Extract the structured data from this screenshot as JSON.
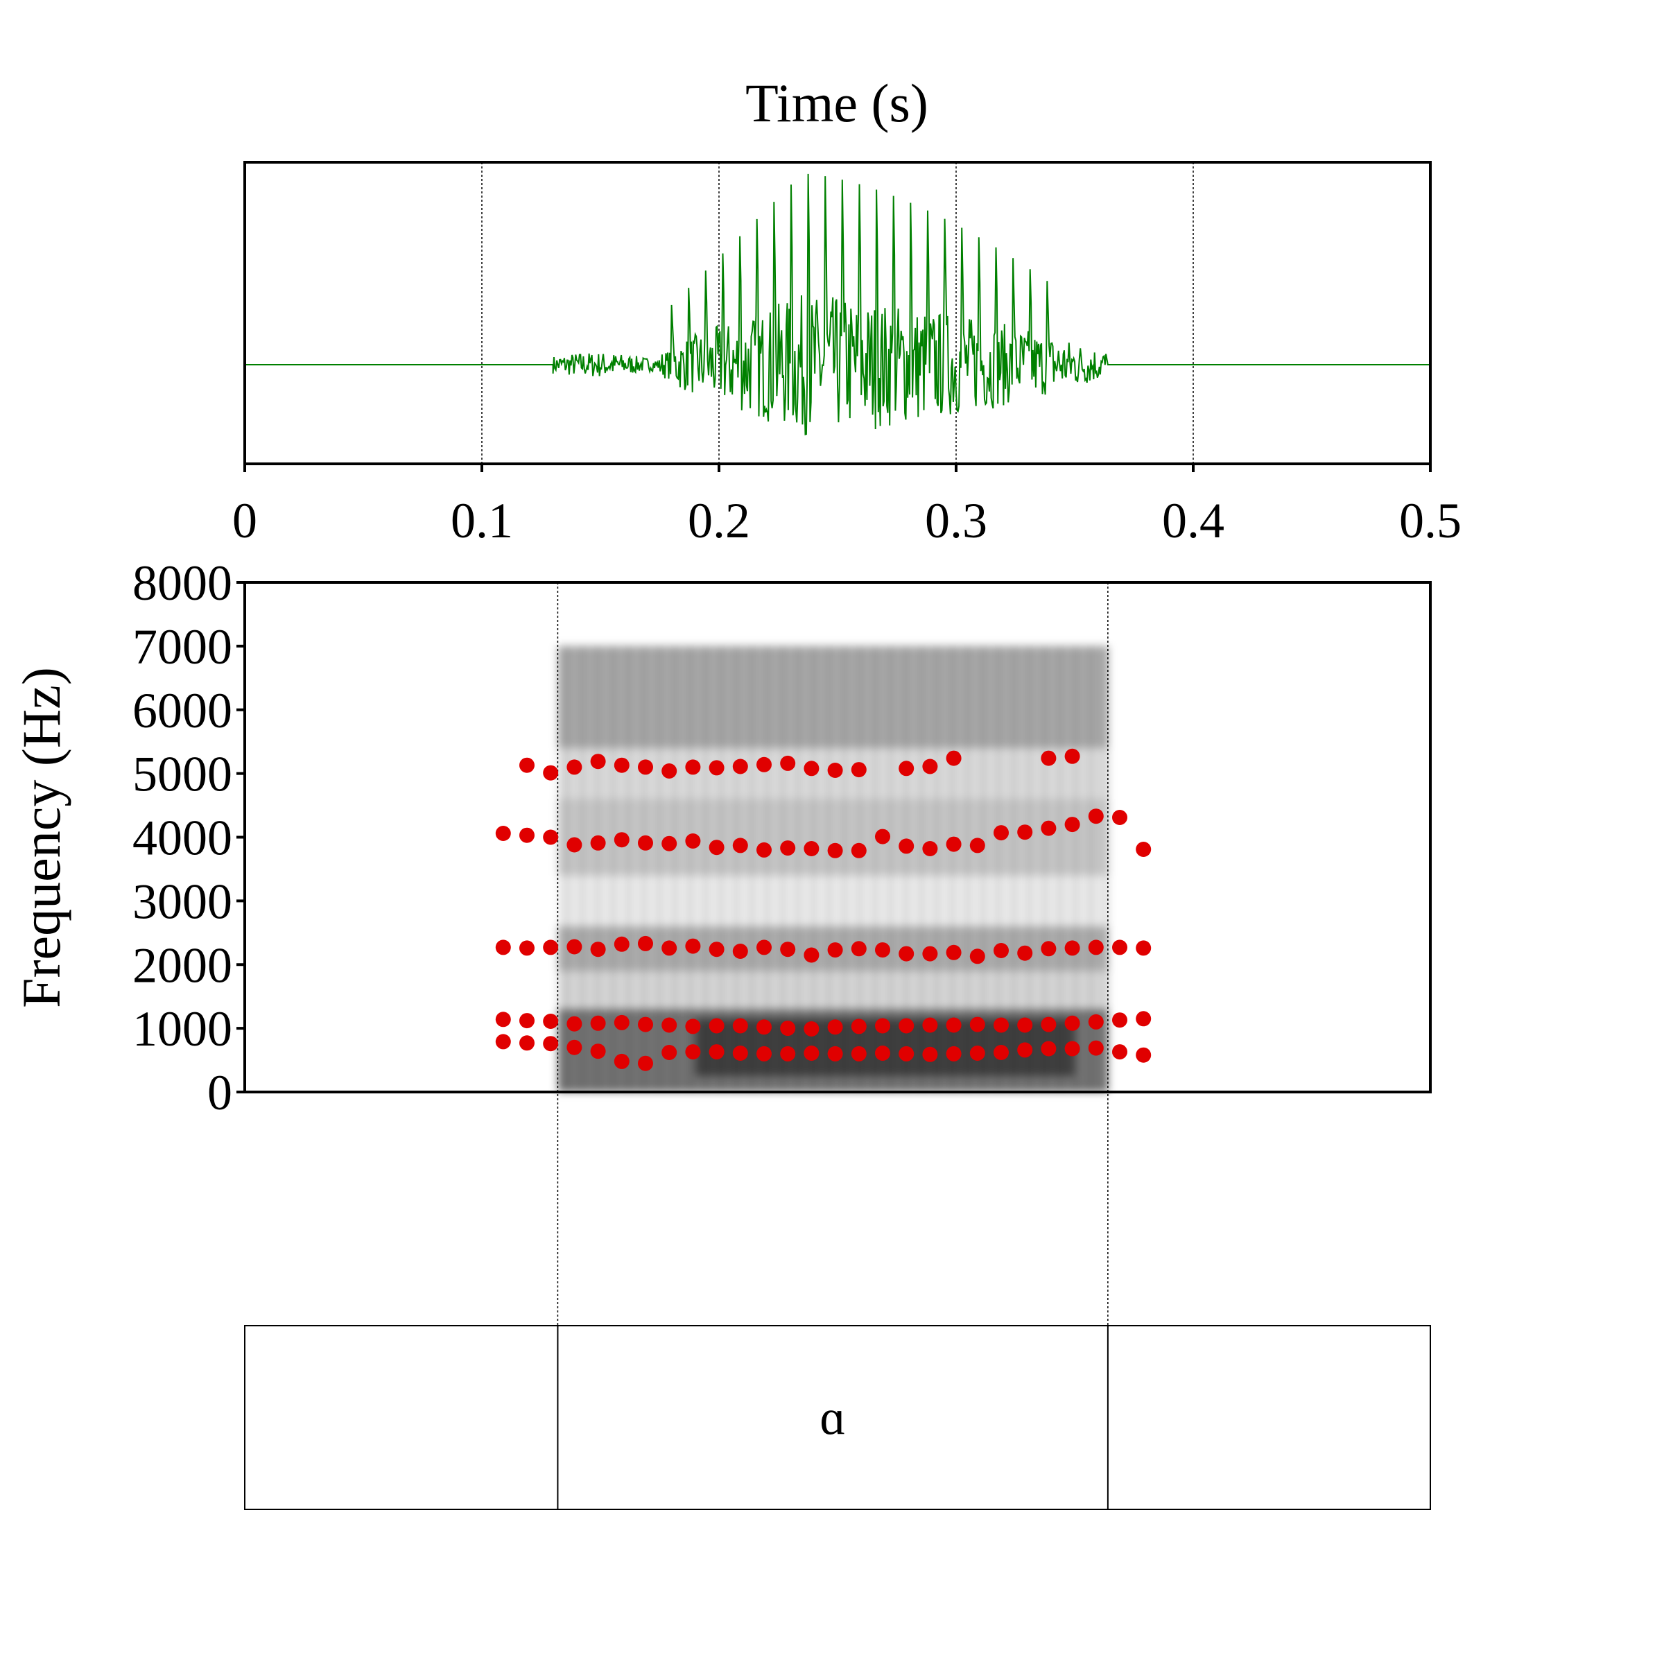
{
  "chart_data": [
    {
      "type": "line",
      "panel": "waveform",
      "title": "Time (s)",
      "xlabel": "",
      "ylabel": "",
      "xlim": [
        0,
        0.5
      ],
      "x_ticks": [
        "0",
        "0.1",
        "0.2",
        "0.3",
        "0.4",
        "0.5"
      ],
      "x_tick_values": [
        0,
        0.1,
        0.2,
        0.3,
        0.4,
        0.5
      ],
      "grid": true,
      "line_color": "#008000",
      "signal_onset_s": 0.13,
      "signal_offset_s": 0.364,
      "peak_amplitude_time_s": 0.235
    },
    {
      "type": "scatter",
      "panel": "spectrogram",
      "title": "",
      "xlabel": "",
      "ylabel": "Frequency (Hz)",
      "xlim": [
        0,
        0.5
      ],
      "ylim": [
        0,
        8000
      ],
      "y_ticks": [
        "0",
        "1000",
        "2000",
        "3000",
        "4000",
        "5000",
        "6000",
        "7000",
        "8000"
      ],
      "y_tick_values": [
        0,
        1000,
        2000,
        3000,
        4000,
        5000,
        6000,
        7000,
        8000
      ],
      "marker_color": "#e00000",
      "spectrogram_color": "#000000",
      "boundaries_s": [
        0.132,
        0.364
      ],
      "series": [
        {
          "x": [
            0.109,
            0.119,
            0.129,
            0.139,
            0.149,
            0.159,
            0.169,
            0.179,
            0.189,
            0.199,
            0.209,
            0.219,
            0.229,
            0.239,
            0.249,
            0.259,
            0.269,
            0.279,
            0.289,
            0.299,
            0.309,
            0.319,
            0.329,
            0.339,
            0.349,
            0.359,
            0.369,
            0.379
          ],
          "y": [
            790,
            770,
            760,
            700,
            640,
            480,
            450,
            620,
            630,
            630,
            610,
            600,
            600,
            610,
            600,
            600,
            610,
            600,
            590,
            600,
            610,
            620,
            660,
            680,
            680,
            690,
            630,
            580
          ]
        },
        {
          "x": [
            0.109,
            0.119,
            0.129,
            0.139,
            0.149,
            0.159,
            0.169,
            0.179,
            0.189,
            0.199,
            0.209,
            0.219,
            0.229,
            0.239,
            0.249,
            0.259,
            0.269,
            0.279,
            0.289,
            0.299,
            0.309,
            0.319,
            0.329,
            0.339,
            0.349,
            0.359,
            0.369,
            0.379
          ],
          "y": [
            1140,
            1120,
            1110,
            1070,
            1080,
            1090,
            1060,
            1050,
            1030,
            1040,
            1040,
            1020,
            1000,
            990,
            1020,
            1030,
            1040,
            1040,
            1050,
            1050,
            1060,
            1050,
            1050,
            1060,
            1080,
            1100,
            1130,
            1150
          ]
        },
        {
          "x": [
            0.109,
            0.119,
            0.129,
            0.139,
            0.149,
            0.159,
            0.169,
            0.179,
            0.189,
            0.199,
            0.209,
            0.219,
            0.229,
            0.239,
            0.249,
            0.259,
            0.269,
            0.279,
            0.289,
            0.299,
            0.309,
            0.319,
            0.329,
            0.339,
            0.349,
            0.359,
            0.369,
            0.379
          ],
          "y": [
            2270,
            2260,
            2270,
            2280,
            2240,
            2320,
            2330,
            2260,
            2290,
            2240,
            2210,
            2270,
            2240,
            2150,
            2230,
            2250,
            2230,
            2170,
            2170,
            2190,
            2130,
            2220,
            2180,
            2250,
            2260,
            2270,
            2270,
            2260
          ]
        },
        {
          "x": [
            0.109,
            0.119,
            0.129,
            0.139,
            0.149,
            0.159,
            0.169,
            0.179,
            0.189,
            0.199,
            0.209,
            0.219,
            0.229,
            0.239,
            0.249,
            0.259,
            0.269,
            0.279,
            0.289,
            0.299,
            0.309,
            0.319,
            0.329,
            0.339,
            0.349,
            0.359,
            0.369,
            0.379
          ],
          "y": [
            4060,
            4030,
            4000,
            3880,
            3910,
            3960,
            3910,
            3900,
            3940,
            3840,
            3870,
            3800,
            3830,
            3820,
            3790,
            3790,
            4010,
            3860,
            3820,
            3890,
            3870,
            4070,
            4080,
            4140,
            4200,
            4330,
            4310,
            3810
          ]
        },
        {
          "x": [
            0.119,
            0.129,
            0.139,
            0.149,
            0.159,
            0.169,
            0.179,
            0.189,
            0.199,
            0.209,
            0.219,
            0.229,
            0.239,
            0.249,
            0.259,
            0.279,
            0.289,
            0.299,
            0.339,
            0.349
          ],
          "y": [
            5130,
            5010,
            5100,
            5190,
            5130,
            5100,
            5040,
            5100,
            5090,
            5110,
            5140,
            5160,
            5080,
            5050,
            5060,
            5080,
            5110,
            5240,
            5240,
            5270
          ]
        }
      ]
    },
    {
      "type": "table",
      "panel": "textgrid",
      "intervals": [
        {
          "start": 0,
          "end": 0.132,
          "text": ""
        },
        {
          "start": 0.132,
          "end": 0.364,
          "text": "ɑ"
        },
        {
          "start": 0.364,
          "end": 0.5,
          "text": ""
        }
      ]
    }
  ]
}
